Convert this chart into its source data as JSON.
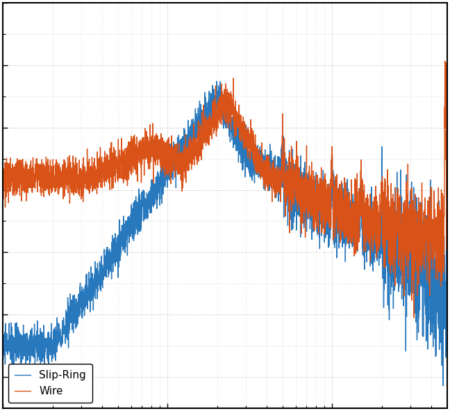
{
  "color_slip_ring": "#2878bd",
  "color_wire": "#d95319",
  "legend_labels": [
    "Slip-Ring",
    "Wire"
  ],
  "background_color": "#ffffff",
  "grid_color": "#999999",
  "linewidth": 1.0,
  "legend_loc": "lower left",
  "seed_sr": 10,
  "seed_wire": 20,
  "N": 4000,
  "f_min": 1,
  "f_max": 500,
  "border_linewidth": 1.5
}
